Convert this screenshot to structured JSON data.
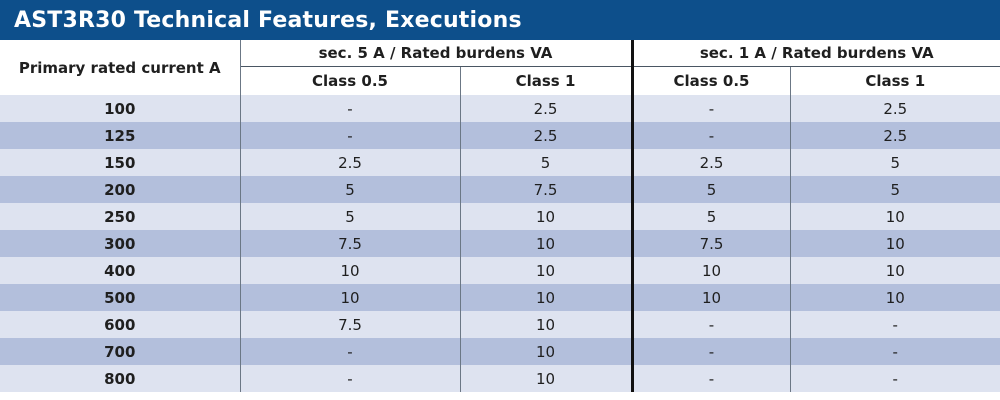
{
  "title": "AST3R30 Technical Features, Executions",
  "table": {
    "primary_header": "Primary rated current A",
    "groups": [
      {
        "label": "sec. 5 A / Rated burdens VA",
        "classes": [
          "Class 0.5",
          "Class 1"
        ]
      },
      {
        "label": "sec. 1 A / Rated burdens VA",
        "classes": [
          "Class 0.5",
          "Class 1"
        ]
      }
    ],
    "rows": [
      [
        "100",
        "-",
        "2.5",
        "-",
        "2.5"
      ],
      [
        "125",
        "-",
        "2.5",
        "-",
        "2.5"
      ],
      [
        "150",
        "2.5",
        "5",
        "2.5",
        "5"
      ],
      [
        "200",
        "5",
        "7.5",
        "5",
        "5"
      ],
      [
        "250",
        "5",
        "10",
        "5",
        "10"
      ],
      [
        "300",
        "7.5",
        "10",
        "7.5",
        "10"
      ],
      [
        "400",
        "10",
        "10",
        "10",
        "10"
      ],
      [
        "500",
        "10",
        "10",
        "10",
        "10"
      ],
      [
        "600",
        "7.5",
        "10",
        "-",
        "-"
      ],
      [
        "700",
        "-",
        "10",
        "-",
        "-"
      ],
      [
        "800",
        "-",
        "10",
        "-",
        "-"
      ]
    ]
  },
  "colors": {
    "banner": "#0d4f8b",
    "row_light": "#dee3f0",
    "row_dark": "#b3bfdc"
  }
}
